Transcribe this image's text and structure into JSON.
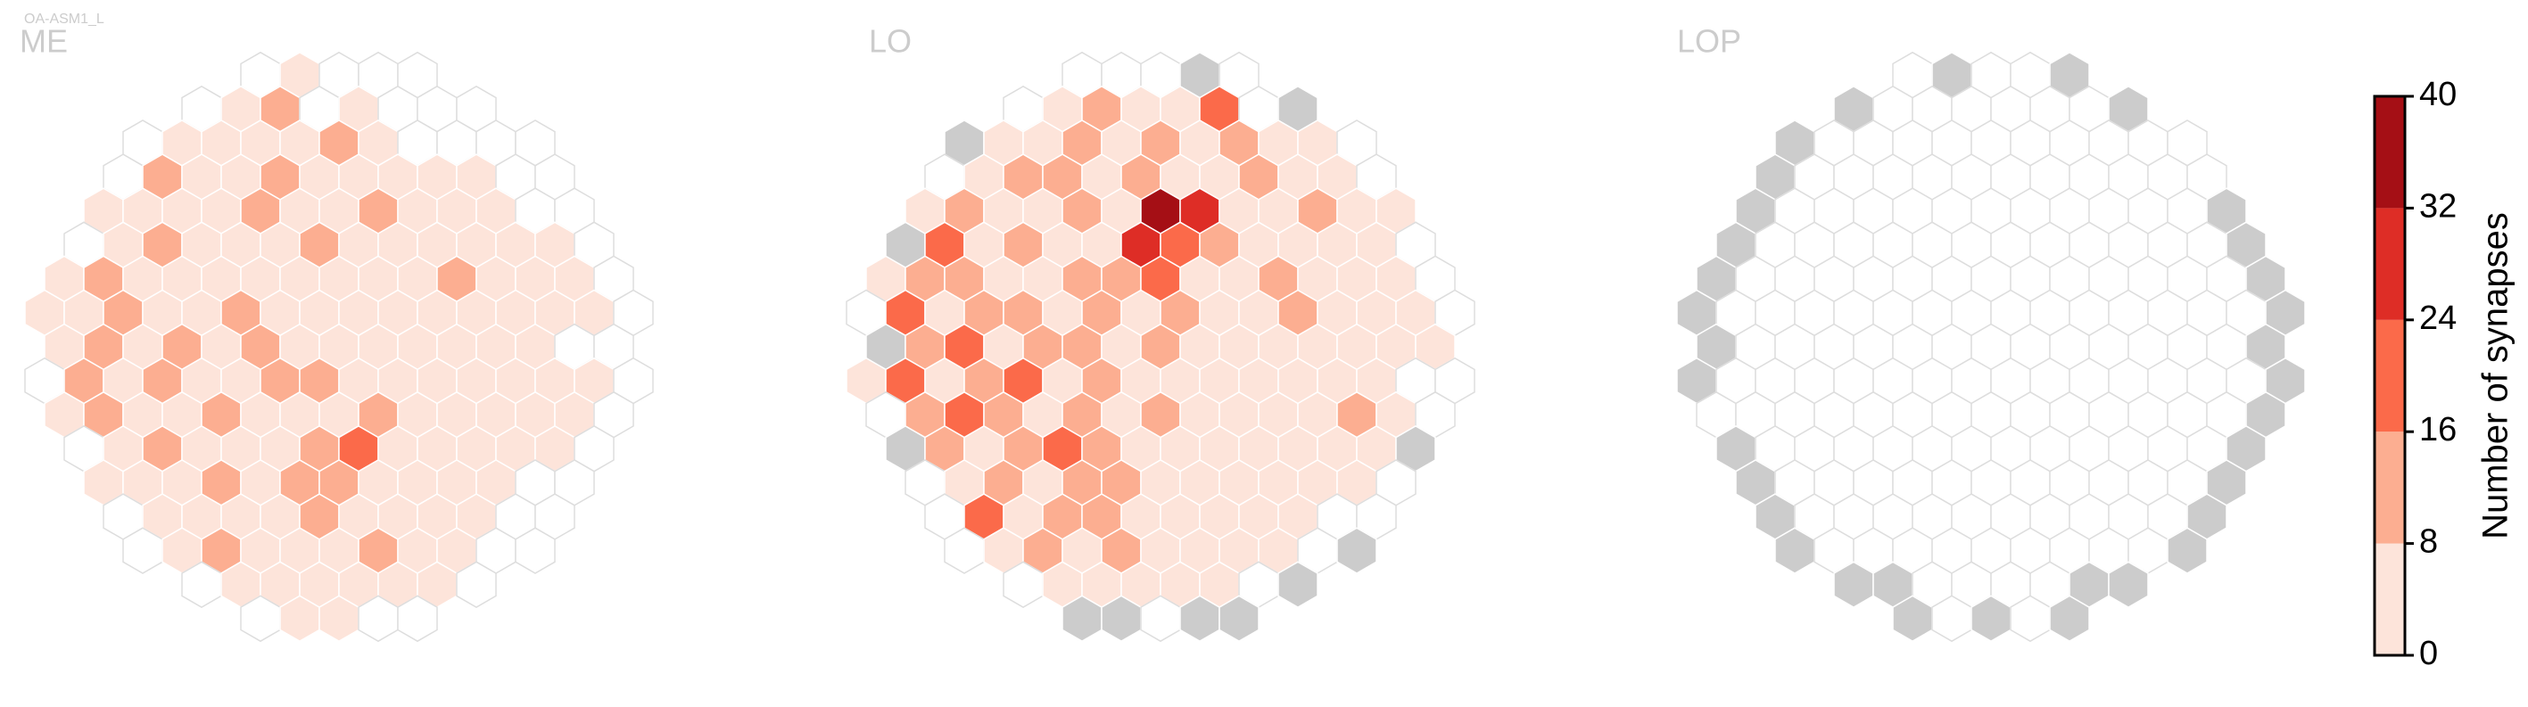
{
  "chart_data": {
    "type": "hexmap",
    "figure_label": "OA-ASM1_L",
    "panels": [
      {
        "title": "ME",
        "rows": [
          [
            0,
            3,
            0,
            0,
            0
          ],
          [
            0,
            2,
            10,
            0,
            1,
            0,
            0,
            0
          ],
          [
            0,
            3,
            2,
            4,
            1,
            12,
            2,
            0,
            0,
            0,
            0
          ],
          [
            0,
            9,
            3,
            2,
            11,
            4,
            2,
            3,
            1,
            2,
            0,
            0
          ],
          [
            2,
            1,
            5,
            3,
            9,
            2,
            4,
            10,
            3,
            2,
            1,
            0,
            0
          ],
          [
            0,
            3,
            12,
            2,
            1,
            4,
            11,
            2,
            3,
            1,
            2,
            3,
            1,
            0
          ],
          [
            4,
            11,
            2,
            3,
            5,
            2,
            1,
            4,
            3,
            2,
            12,
            1,
            2,
            3,
            0
          ],
          [
            1,
            3,
            9,
            2,
            4,
            12,
            3,
            2,
            1,
            3,
            2,
            4,
            1,
            2,
            1,
            0
          ],
          [
            3,
            12,
            2,
            10,
            3,
            11,
            2,
            4,
            1,
            3,
            2,
            2,
            1,
            0,
            0
          ],
          [
            0,
            10,
            4,
            13,
            2,
            3,
            10,
            12,
            1,
            3,
            2,
            4,
            2,
            1,
            3,
            0
          ],
          [
            2,
            11,
            3,
            2,
            12,
            4,
            2,
            3,
            11,
            1,
            2,
            3,
            1,
            2,
            0
          ],
          [
            0,
            3,
            10,
            2,
            1,
            3,
            12,
            18,
            2,
            3,
            1,
            2,
            1,
            0
          ],
          [
            1,
            2,
            3,
            11,
            2,
            10,
            13,
            3,
            2,
            1,
            2,
            0,
            0
          ],
          [
            0,
            3,
            2,
            4,
            1,
            12,
            2,
            3,
            1,
            2,
            0,
            0
          ],
          [
            0,
            2,
            11,
            3,
            1,
            2,
            10,
            2,
            1,
            0,
            0
          ],
          [
            0,
            3,
            2,
            1,
            2,
            3,
            1,
            0
          ],
          [
            0,
            1,
            2,
            0,
            0
          ]
        ]
      },
      {
        "title": "LO",
        "rows": [
          [
            0,
            0,
            0,
            null,
            0
          ],
          [
            0,
            2,
            12,
            4,
            3,
            18,
            0,
            null
          ],
          [
            null,
            2,
            3,
            12,
            3,
            10,
            3,
            14,
            2,
            1,
            0
          ],
          [
            0,
            3,
            14,
            10,
            2,
            9,
            3,
            2,
            12,
            3,
            2,
            0
          ],
          [
            2,
            10,
            3,
            2,
            11,
            3,
            34,
            26,
            3,
            2,
            10,
            3,
            1
          ],
          [
            null,
            20,
            3,
            12,
            2,
            4,
            28,
            20,
            12,
            3,
            2,
            3,
            1,
            0
          ],
          [
            2,
            13,
            9,
            3,
            2,
            12,
            10,
            20,
            3,
            2,
            11,
            3,
            2,
            1,
            0
          ],
          [
            0,
            20,
            3,
            11,
            12,
            2,
            14,
            3,
            10,
            2,
            3,
            12,
            2,
            3,
            1,
            0
          ],
          [
            null,
            12,
            20,
            3,
            11,
            13,
            2,
            10,
            3,
            2,
            4,
            2,
            3,
            1,
            2
          ],
          [
            2,
            18,
            3,
            12,
            20,
            3,
            11,
            2,
            3,
            1,
            2,
            3,
            1,
            2,
            0,
            0
          ],
          [
            0,
            11,
            20,
            10,
            3,
            12,
            2,
            13,
            2,
            3,
            1,
            2,
            10,
            1,
            0
          ],
          [
            null,
            14,
            3,
            12,
            20,
            11,
            2,
            3,
            2,
            1,
            2,
            3,
            1,
            null
          ],
          [
            0,
            2,
            13,
            3,
            12,
            10,
            3,
            2,
            1,
            2,
            3,
            1,
            0
          ],
          [
            0,
            20,
            3,
            11,
            12,
            2,
            3,
            1,
            2,
            2,
            0,
            0
          ],
          [
            0,
            3,
            12,
            2,
            10,
            3,
            2,
            1,
            2,
            0,
            null
          ],
          [
            0,
            2,
            3,
            1,
            2,
            1,
            0,
            null
          ],
          [
            null,
            null,
            0,
            null,
            null
          ]
        ]
      },
      {
        "title": "LOP",
        "rows": [
          [
            0,
            null,
            0,
            0,
            null
          ],
          [
            null,
            0,
            0,
            0,
            0,
            0,
            0,
            null
          ],
          [
            null,
            0,
            0,
            0,
            0,
            0,
            0,
            0,
            0,
            0,
            0
          ],
          [
            null,
            0,
            0,
            0,
            0,
            0,
            0,
            0,
            0,
            0,
            0,
            0
          ],
          [
            null,
            0,
            0,
            0,
            0,
            0,
            0,
            0,
            0,
            0,
            0,
            0,
            null
          ],
          [
            null,
            0,
            0,
            0,
            0,
            0,
            0,
            0,
            0,
            0,
            0,
            0,
            0,
            null
          ],
          [
            null,
            0,
            0,
            0,
            0,
            0,
            0,
            0,
            0,
            0,
            0,
            0,
            0,
            0,
            null
          ],
          [
            null,
            0,
            0,
            0,
            0,
            0,
            0,
            0,
            0,
            0,
            0,
            0,
            0,
            0,
            0,
            null
          ],
          [
            null,
            0,
            0,
            0,
            0,
            0,
            0,
            0,
            0,
            0,
            0,
            0,
            0,
            0,
            null
          ],
          [
            null,
            0,
            0,
            0,
            0,
            0,
            0,
            0,
            0,
            0,
            0,
            0,
            0,
            0,
            0,
            null
          ],
          [
            0,
            0,
            0,
            0,
            0,
            0,
            0,
            0,
            0,
            0,
            0,
            0,
            0,
            0,
            null
          ],
          [
            null,
            0,
            0,
            0,
            0,
            0,
            0,
            0,
            0,
            0,
            0,
            0,
            0,
            null
          ],
          [
            null,
            0,
            0,
            0,
            0,
            0,
            0,
            0,
            0,
            0,
            0,
            0,
            null
          ],
          [
            null,
            0,
            0,
            0,
            0,
            0,
            0,
            0,
            0,
            0,
            0,
            null
          ],
          [
            null,
            0,
            0,
            0,
            0,
            0,
            0,
            0,
            0,
            0,
            null
          ],
          [
            null,
            null,
            0,
            0,
            0,
            0,
            null,
            null
          ],
          [
            null,
            0,
            null,
            0,
            null
          ]
        ]
      }
    ],
    "missing_color": "#cccccc",
    "zero_color": "#ffffff",
    "colorbar": {
      "label": "Number of synapses",
      "lim": [
        0,
        40
      ],
      "ticks": [
        0,
        8,
        16,
        24,
        32,
        40
      ],
      "colors": [
        "#fde4da",
        "#fcae91",
        "#fb6a4a",
        "#de2d26",
        "#a50f15"
      ]
    }
  }
}
